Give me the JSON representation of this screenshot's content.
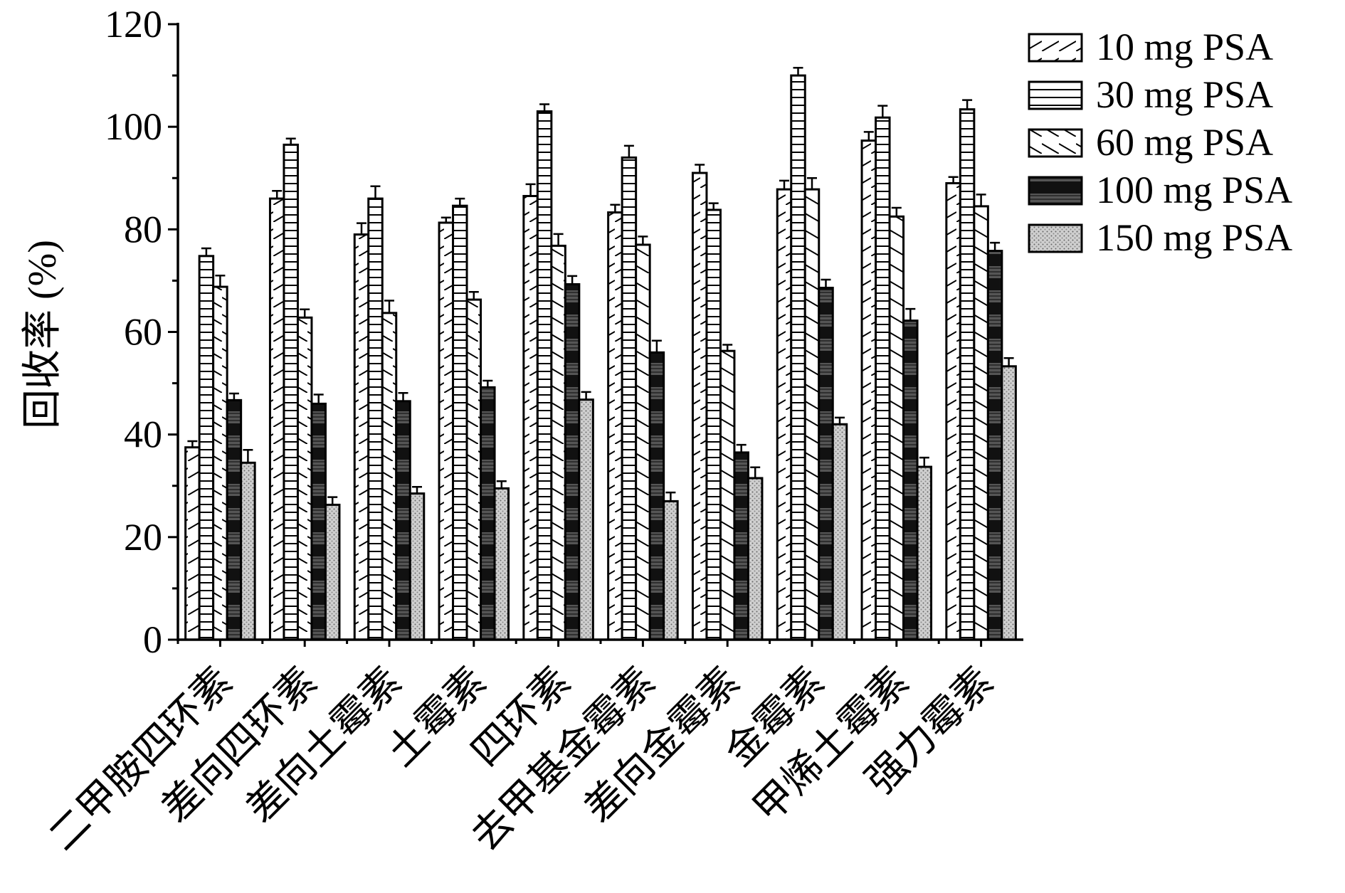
{
  "chart_data": {
    "type": "bar",
    "title": "",
    "xlabel": "",
    "ylabel": "回收率 (%)",
    "ylim": [
      0,
      120
    ],
    "yticks": [
      0,
      20,
      40,
      60,
      80,
      100,
      120
    ],
    "grid": false,
    "legend_position": "top-right",
    "categories": [
      "二甲胺四环素",
      "差向四环素",
      "差向土霉素",
      "土霉素",
      "四环素",
      "去甲基金霉素",
      "差向金霉素",
      "金霉素",
      "甲烯土霉素",
      "强力霉素"
    ],
    "series": [
      {
        "name": "10 mg PSA",
        "pattern": "diagonal-up",
        "values": [
          37.5,
          86.0,
          79.0,
          81.3,
          86.5,
          83.3,
          91.0,
          87.8,
          97.3,
          89.0
        ],
        "errors": [
          1.2,
          1.5,
          2.2,
          1.0,
          2.3,
          1.5,
          1.6,
          1.7,
          1.7,
          1.2
        ]
      },
      {
        "name": "30 mg PSA",
        "pattern": "horizontal",
        "values": [
          74.8,
          96.5,
          86.0,
          84.6,
          103.0,
          94.0,
          83.8,
          110.0,
          101.8,
          103.4
        ],
        "errors": [
          1.5,
          1.2,
          2.4,
          1.4,
          1.4,
          2.3,
          1.3,
          1.5,
          2.3,
          1.8
        ]
      },
      {
        "name": "60 mg PSA",
        "pattern": "diagonal-down",
        "values": [
          68.8,
          62.8,
          63.7,
          66.3,
          76.8,
          77.0,
          56.3,
          87.8,
          82.5,
          84.5
        ],
        "errors": [
          2.2,
          1.6,
          2.4,
          1.5,
          2.3,
          1.6,
          1.2,
          2.2,
          1.7,
          2.3
        ]
      },
      {
        "name": "100 mg PSA",
        "pattern": "dark-checker",
        "values": [
          46.7,
          46.0,
          46.5,
          49.2,
          69.3,
          56.0,
          36.5,
          68.6,
          62.2,
          75.8
        ],
        "errors": [
          1.3,
          1.8,
          1.6,
          1.3,
          1.6,
          2.3,
          1.5,
          1.6,
          2.3,
          1.6
        ]
      },
      {
        "name": "150 mg PSA",
        "pattern": "light-dotted",
        "values": [
          34.5,
          26.3,
          28.5,
          29.5,
          46.8,
          27.0,
          31.5,
          42.0,
          33.7,
          53.3
        ],
        "errors": [
          2.5,
          1.5,
          1.3,
          1.4,
          1.5,
          1.7,
          2.1,
          1.3,
          1.8,
          1.6
        ]
      }
    ]
  }
}
